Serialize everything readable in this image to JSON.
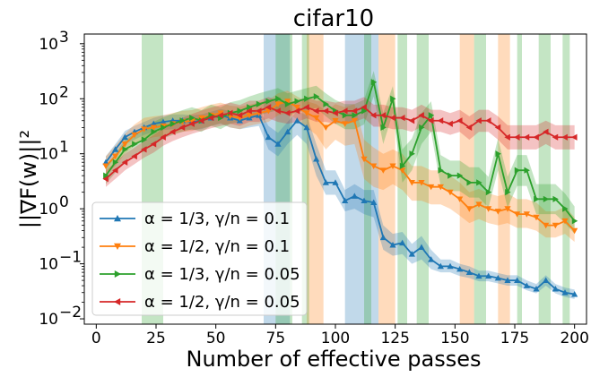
{
  "chart_data": {
    "type": "line",
    "title": "cifar10",
    "xlabel": "Number of effective passes",
    "ylabel": "||∇F(w)||²",
    "xlim": [
      -5,
      205
    ],
    "ylim": [
      0.008,
      1500
    ],
    "yscale": "log",
    "xticks": [
      0,
      25,
      50,
      75,
      100,
      125,
      150,
      175,
      200
    ],
    "xtick_labels": [
      "0",
      "25",
      "50",
      "75",
      "100",
      "125",
      "150",
      "175",
      "200"
    ],
    "yticks": [
      0.01,
      0.1,
      1,
      10,
      100,
      1000
    ],
    "ytick_labels": [
      {
        "base": "10",
        "exp": "−2"
      },
      {
        "base": "10",
        "exp": "−1"
      },
      {
        "base": "10",
        "exp": "0"
      },
      {
        "base": "10",
        "exp": "1"
      },
      {
        "base": "10",
        "exp": "2"
      },
      {
        "base": "10",
        "exp": "3"
      }
    ],
    "grid": false,
    "legend_position": "lower-left",
    "x": [
      4,
      8,
      12,
      16,
      20,
      24,
      28,
      32,
      36,
      40,
      44,
      48,
      52,
      56,
      60,
      64,
      68,
      72,
      76,
      80,
      84,
      88,
      92,
      96,
      100,
      104,
      108,
      112,
      116,
      120,
      124,
      128,
      132,
      136,
      140,
      144,
      148,
      152,
      156,
      160,
      164,
      168,
      172,
      176,
      180,
      184,
      188,
      192,
      196,
      200
    ],
    "series": [
      {
        "name": "α = 1/3, γ/n = 0.1",
        "color": "#1f77b4",
        "marker": "triangle-up",
        "y": [
          7,
          12,
          20,
          25,
          30,
          35,
          38,
          40,
          40,
          38,
          40,
          45,
          50,
          45,
          40,
          45,
          50,
          20,
          15,
          25,
          40,
          30,
          8,
          3,
          3,
          1.4,
          1.7,
          1.4,
          1.3,
          0.3,
          0.22,
          0.24,
          0.15,
          0.2,
          0.12,
          0.09,
          0.09,
          0.08,
          0.07,
          0.06,
          0.06,
          0.055,
          0.05,
          0.05,
          0.04,
          0.035,
          0.05,
          0.035,
          0.03,
          0.028
        ],
        "band_lower": [
          5,
          9,
          15,
          18,
          22,
          25,
          27,
          28,
          28,
          27,
          28,
          32,
          35,
          30,
          28,
          30,
          32,
          12,
          9,
          15,
          22,
          15,
          4,
          1.8,
          1.8,
          0.9,
          1,
          0.8,
          0.7,
          0.18,
          0.14,
          0.15,
          0.1,
          0.12,
          0.08,
          0.07,
          0.07,
          0.06,
          0.055,
          0.048,
          0.048,
          0.044,
          0.04,
          0.04,
          0.033,
          0.029,
          0.04,
          0.029,
          0.025,
          0.023
        ],
        "band_upper": [
          9,
          15,
          26,
          32,
          38,
          45,
          50,
          52,
          52,
          50,
          52,
          58,
          65,
          60,
          55,
          60,
          65,
          32,
          24,
          38,
          60,
          50,
          15,
          5,
          5,
          2.2,
          2.8,
          2.2,
          2.2,
          0.5,
          0.35,
          0.38,
          0.23,
          0.32,
          0.18,
          0.12,
          0.12,
          0.1,
          0.09,
          0.075,
          0.075,
          0.068,
          0.062,
          0.062,
          0.05,
          0.043,
          0.062,
          0.043,
          0.037,
          0.034
        ],
        "spikes": [
          [
            70,
            81
          ],
          [
            104,
            118
          ]
        ]
      },
      {
        "name": "α = 1/2, γ/n = 0.1",
        "color": "#ff7f0e",
        "marker": "triangle-down",
        "y": [
          6,
          9,
          15,
          22,
          28,
          30,
          32,
          35,
          38,
          40,
          45,
          50,
          55,
          48,
          45,
          50,
          55,
          60,
          80,
          90,
          70,
          55,
          45,
          30,
          40,
          35,
          40,
          8,
          6,
          5,
          6,
          5,
          3,
          3,
          2.5,
          2.5,
          2,
          1.5,
          1,
          1.2,
          1,
          0.9,
          1,
          0.8,
          0.8,
          0.7,
          0.5,
          0.5,
          0.6,
          0.4
        ],
        "band_lower": [
          4,
          6,
          10,
          14,
          18,
          20,
          21,
          23,
          25,
          26,
          29,
          32,
          36,
          30,
          28,
          32,
          35,
          38,
          50,
          55,
          42,
          30,
          22,
          12,
          18,
          14,
          15,
          3.5,
          2.5,
          2.2,
          2.8,
          2.2,
          1.4,
          1.4,
          1.2,
          1.2,
          1,
          0.75,
          0.55,
          0.65,
          0.55,
          0.5,
          0.55,
          0.45,
          0.45,
          0.4,
          0.3,
          0.3,
          0.35,
          0.25
        ],
        "band_upper": [
          9,
          14,
          23,
          34,
          45,
          48,
          50,
          55,
          60,
          62,
          70,
          78,
          85,
          75,
          72,
          78,
          85,
          95,
          125,
          140,
          110,
          90,
          80,
          60,
          80,
          70,
          80,
          18,
          13,
          10,
          12,
          10,
          6,
          6,
          5,
          5,
          4,
          3,
          2,
          2.3,
          1.9,
          1.7,
          1.9,
          1.5,
          1.5,
          1.3,
          0.9,
          0.9,
          1.1,
          0.7
        ],
        "spikes": [
          [
            88,
            95
          ],
          [
            118,
            125
          ],
          [
            152,
            158
          ],
          [
            168,
            173
          ]
        ]
      },
      {
        "name": "α = 1/3, γ/n = 0.05",
        "color": "#2ca02c",
        "marker": "triangle-right",
        "y": [
          4,
          7,
          12,
          15,
          18,
          25,
          30,
          35,
          40,
          45,
          40,
          50,
          45,
          55,
          60,
          70,
          80,
          90,
          100,
          80,
          90,
          100,
          110,
          80,
          60,
          50,
          50,
          60,
          200,
          30,
          100,
          6,
          10,
          30,
          50,
          5,
          4,
          4,
          3,
          3,
          2,
          10,
          2,
          5,
          5,
          1.5,
          1.5,
          1.5,
          1,
          0.6
        ],
        "band_lower": [
          2.8,
          4.5,
          7.5,
          9.5,
          11,
          16,
          19,
          22,
          25,
          28,
          25,
          32,
          28,
          35,
          38,
          44,
          50,
          56,
          62,
          50,
          56,
          62,
          68,
          48,
          35,
          28,
          28,
          34,
          110,
          15,
          55,
          3,
          5,
          15,
          25,
          2.6,
          2.1,
          2.1,
          1.6,
          1.6,
          1.05,
          5,
          1.05,
          2.6,
          2.6,
          0.8,
          0.8,
          0.8,
          0.55,
          0.35
        ],
        "band_upper": [
          5.8,
          10,
          18,
          23,
          28,
          38,
          46,
          54,
          62,
          70,
          62,
          78,
          70,
          86,
          94,
          110,
          125,
          140,
          156,
          125,
          140,
          156,
          172,
          125,
          95,
          80,
          80,
          96,
          320,
          55,
          170,
          12,
          19,
          55,
          90,
          9.5,
          7.5,
          7.5,
          5.7,
          5.7,
          3.8,
          19,
          3.8,
          9.5,
          9.5,
          2.8,
          2.8,
          2.8,
          1.9,
          1.1
        ],
        "spikes": [
          [
            19,
            28
          ],
          [
            75,
            82
          ],
          [
            86,
            89
          ],
          [
            112,
            115
          ],
          [
            126,
            130
          ],
          [
            134,
            139
          ],
          [
            158,
            163
          ],
          [
            176,
            178
          ],
          [
            185,
            190
          ],
          [
            195,
            198
          ]
        ]
      },
      {
        "name": "α = 1/2, γ/n = 0.05",
        "color": "#d62728",
        "marker": "triangle-left",
        "y": [
          3.5,
          5,
          7,
          9,
          12,
          15,
          20,
          25,
          30,
          35,
          40,
          45,
          50,
          55,
          50,
          60,
          60,
          70,
          60,
          55,
          60,
          70,
          60,
          60,
          55,
          60,
          60,
          70,
          50,
          50,
          45,
          45,
          40,
          50,
          40,
          40,
          35,
          40,
          30,
          40,
          40,
          30,
          20,
          20,
          20,
          20,
          25,
          20,
          20,
          20
        ],
        "band_lower": [
          2.5,
          3.5,
          5,
          6.5,
          8.5,
          10.5,
          14,
          17,
          20,
          23,
          26,
          29,
          32,
          35,
          32,
          38,
          38,
          44,
          38,
          35,
          38,
          44,
          38,
          38,
          35,
          38,
          38,
          44,
          31,
          31,
          28,
          28,
          25,
          31,
          25,
          25,
          22,
          25,
          18,
          25,
          25,
          18,
          12,
          12,
          12,
          12,
          15,
          12,
          12,
          12
        ],
        "band_upper": [
          5,
          7,
          10,
          13,
          17,
          22,
          29,
          37,
          45,
          53,
          61,
          69,
          77,
          85,
          77,
          92,
          92,
          108,
          92,
          85,
          92,
          108,
          92,
          92,
          85,
          92,
          92,
          108,
          78,
          78,
          70,
          70,
          63,
          78,
          63,
          63,
          55,
          63,
          48,
          63,
          63,
          48,
          33,
          33,
          33,
          33,
          40,
          33,
          33,
          33
        ],
        "spikes": []
      }
    ]
  }
}
